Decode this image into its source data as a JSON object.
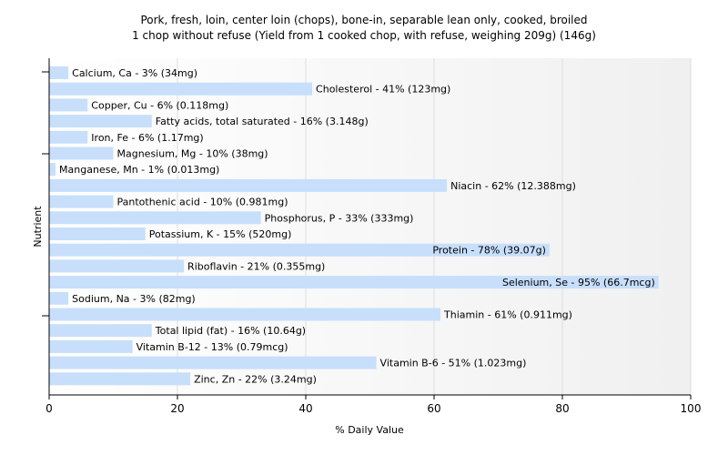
{
  "chart_data": {
    "type": "bar",
    "orientation": "horizontal",
    "title": "Pork, fresh, loin, center loin (chops), bone-in, separable lean only, cooked, broiled",
    "subtitle": "1 chop without refuse (Yield from 1 cooked chop, with refuse, weighing 209g) (146g)",
    "xlabel": "% Daily Value",
    "ylabel": "Nutrient",
    "xlim": [
      0,
      100
    ],
    "xticks": [
      "0",
      "20",
      "40",
      "60",
      "80",
      "100"
    ],
    "grid": true,
    "bar_color": "#c7dffb",
    "categories": [
      "Calcium, Ca",
      "Cholesterol",
      "Copper, Cu",
      "Fatty acids, total saturated",
      "Iron, Fe",
      "Magnesium, Mg",
      "Manganese, Mn",
      "Niacin",
      "Pantothenic acid",
      "Phosphorus, P",
      "Potassium, K",
      "Protein",
      "Riboflavin",
      "Selenium, Se",
      "Sodium, Na",
      "Thiamin",
      "Total lipid (fat)",
      "Vitamin B-12",
      "Vitamin B-6",
      "Zinc, Zn"
    ],
    "values": [
      3,
      41,
      6,
      16,
      6,
      10,
      1,
      62,
      10,
      33,
      15,
      78,
      21,
      95,
      3,
      61,
      16,
      13,
      51,
      22
    ],
    "labels": [
      "Calcium, Ca - 3% (34mg)",
      "Cholesterol - 41% (123mg)",
      "Copper, Cu - 6% (0.118mg)",
      "Fatty acids, total saturated - 16% (3.148g)",
      "Iron, Fe - 6% (1.17mg)",
      "Magnesium, Mg - 10% (38mg)",
      "Manganese, Mn - 1% (0.013mg)",
      "Niacin - 62% (12.388mg)",
      "Pantothenic acid - 10% (0.981mg)",
      "Phosphorus, P - 33% (333mg)",
      "Potassium, K - 15% (520mg)",
      "Protein - 78% (39.07g)",
      "Riboflavin - 21% (0.355mg)",
      "Selenium, Se - 95% (66.7mcg)",
      "Sodium, Na - 3% (82mg)",
      "Thiamin - 61% (0.911mg)",
      "Total lipid (fat) - 16% (10.64g)",
      "Vitamin B-12 - 13% (0.79mcg)",
      "Vitamin B-6 - 51% (1.023mg)",
      "Zinc, Zn - 22% (3.24mg)"
    ]
  }
}
